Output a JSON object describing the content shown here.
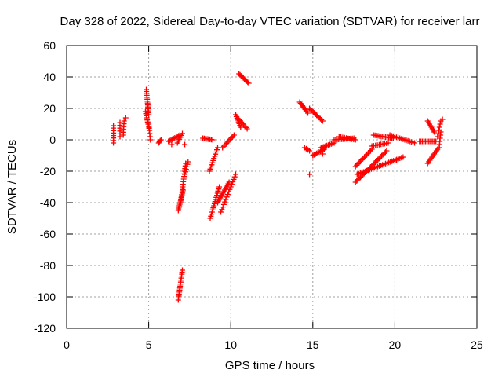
{
  "chart_data": {
    "type": "scatter",
    "title": "Day 328 of 2022, Sidereal Day-to-day VTEC variation (SDTVAR) for receiver larr",
    "xlabel": "GPS time / hours",
    "ylabel": "SDTVAR / TECUs",
    "xlim": [
      0,
      25
    ],
    "ylim": [
      -120,
      60
    ],
    "xticks": [
      0,
      5,
      10,
      15,
      20,
      25
    ],
    "yticks": [
      -120,
      -100,
      -80,
      -60,
      -40,
      -20,
      0,
      20,
      40,
      60
    ],
    "grid": true,
    "marker": "+",
    "color": "#ff0000",
    "segments": [
      {
        "from": [
          2.85,
          -2
        ],
        "to": [
          2.85,
          9
        ],
        "n": 8
      },
      {
        "from": [
          3.25,
          2
        ],
        "to": [
          3.25,
          11
        ],
        "n": 6
      },
      {
        "from": [
          3.45,
          3
        ],
        "to": [
          3.5,
          12
        ],
        "n": 6
      },
      {
        "from": [
          4.85,
          32
        ],
        "to": [
          5.0,
          16
        ],
        "n": 14
      },
      {
        "from": [
          4.8,
          18
        ],
        "to": [
          5.05,
          6
        ],
        "n": 10
      },
      {
        "from": [
          5.0,
          10
        ],
        "to": [
          5.1,
          0
        ],
        "n": 6
      },
      {
        "from": [
          5.6,
          -2
        ],
        "to": [
          5.75,
          0
        ],
        "n": 4
      },
      {
        "from": [
          6.2,
          -1
        ],
        "to": [
          6.9,
          3
        ],
        "n": 10
      },
      {
        "from": [
          6.75,
          -2
        ],
        "to": [
          7.05,
          4
        ],
        "n": 6
      },
      {
        "from": [
          6.8,
          -45
        ],
        "to": [
          7.1,
          -32
        ],
        "n": 14
      },
      {
        "from": [
          6.95,
          -40
        ],
        "to": [
          7.25,
          -15
        ],
        "n": 16
      },
      {
        "from": [
          7.2,
          -22
        ],
        "to": [
          7.4,
          -14
        ],
        "n": 6
      },
      {
        "from": [
          6.8,
          -102
        ],
        "to": [
          7.05,
          -83
        ],
        "n": 16
      },
      {
        "from": [
          8.3,
          1
        ],
        "to": [
          8.9,
          0
        ],
        "n": 8
      },
      {
        "from": [
          8.7,
          -20
        ],
        "to": [
          9.2,
          -5
        ],
        "n": 12
      },
      {
        "from": [
          8.75,
          -50
        ],
        "to": [
          9.3,
          -30
        ],
        "n": 16
      },
      {
        "from": [
          9.2,
          -40
        ],
        "to": [
          9.9,
          -27
        ],
        "n": 14
      },
      {
        "from": [
          9.4,
          -46
        ],
        "to": [
          10.3,
          -22
        ],
        "n": 16
      },
      {
        "from": [
          9.5,
          -5
        ],
        "to": [
          10.2,
          3
        ],
        "n": 10
      },
      {
        "from": [
          10.3,
          16
        ],
        "to": [
          10.6,
          8
        ],
        "n": 8
      },
      {
        "from": [
          10.5,
          13
        ],
        "to": [
          11.0,
          7
        ],
        "n": 8
      },
      {
        "from": [
          10.5,
          42
        ],
        "to": [
          11.1,
          36
        ],
        "n": 10
      },
      {
        "from": [
          14.2,
          24
        ],
        "to": [
          14.7,
          17
        ],
        "n": 10
      },
      {
        "from": [
          14.8,
          20
        ],
        "to": [
          15.6,
          12
        ],
        "n": 12
      },
      {
        "from": [
          14.5,
          -5
        ],
        "to": [
          14.8,
          -7
        ],
        "n": 4
      },
      {
        "from": [
          15.0,
          -10
        ],
        "to": [
          15.7,
          -6
        ],
        "n": 10
      },
      {
        "from": [
          15.5,
          -5
        ],
        "to": [
          16.3,
          -2
        ],
        "n": 10
      },
      {
        "from": [
          16.3,
          0
        ],
        "to": [
          17.5,
          1
        ],
        "n": 14
      },
      {
        "from": [
          16.6,
          2
        ],
        "to": [
          17.6,
          0
        ],
        "n": 10
      },
      {
        "from": [
          17.6,
          -27
        ],
        "to": [
          19.5,
          -7
        ],
        "n": 26
      },
      {
        "from": [
          17.7,
          -22
        ],
        "to": [
          20.5,
          -11
        ],
        "n": 30
      },
      {
        "from": [
          17.6,
          -17
        ],
        "to": [
          18.6,
          -6
        ],
        "n": 14
      },
      {
        "from": [
          18.7,
          3
        ],
        "to": [
          19.9,
          1
        ],
        "n": 14
      },
      {
        "from": [
          19.7,
          3
        ],
        "to": [
          21.2,
          -2
        ],
        "n": 16
      },
      {
        "from": [
          18.6,
          -4
        ],
        "to": [
          19.6,
          -2
        ],
        "n": 10
      },
      {
        "from": [
          21.5,
          -1
        ],
        "to": [
          22.5,
          -1
        ],
        "n": 12
      },
      {
        "from": [
          22.0,
          12
        ],
        "to": [
          22.4,
          5
        ],
        "n": 8
      },
      {
        "from": [
          22.0,
          -15
        ],
        "to": [
          22.6,
          -6
        ],
        "n": 10
      },
      {
        "from": [
          22.6,
          2
        ],
        "to": [
          22.8,
          12
        ],
        "n": 6
      },
      {
        "from": [
          22.7,
          -5
        ],
        "to": [
          22.8,
          5
        ],
        "n": 6
      }
    ],
    "points": [
      [
        3.6,
        14
      ],
      [
        6.4,
        -3
      ],
      [
        7.2,
        -3
      ],
      [
        14.8,
        -22
      ],
      [
        15.6,
        -9
      ],
      [
        20.1,
        -13
      ],
      [
        22.9,
        13
      ]
    ]
  }
}
